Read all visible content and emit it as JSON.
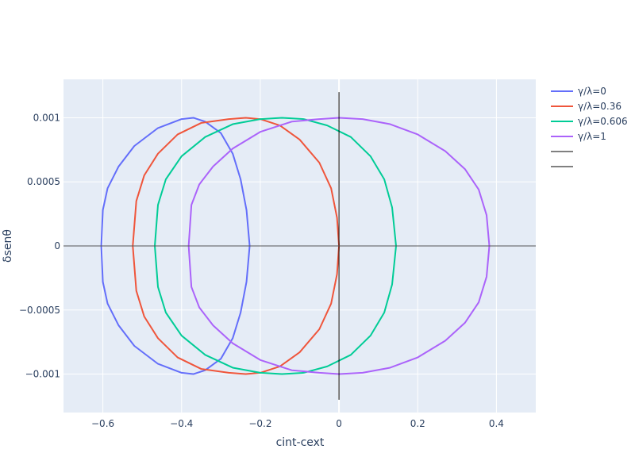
{
  "chart_data": {
    "type": "line",
    "xlabel": "cint-cext",
    "ylabel": "δsenθ",
    "xlim": [
      -0.7,
      0.5
    ],
    "ylim": [
      -0.0013,
      0.0013
    ],
    "xticks": [
      -0.6,
      -0.4,
      -0.2,
      0,
      0.2,
      0.4
    ],
    "xtick_labels": [
      "−0.6",
      "−0.4",
      "−0.2",
      "0",
      "0.2",
      "0.4"
    ],
    "yticks": [
      -0.001,
      -0.0005,
      0,
      0.0005,
      0.001
    ],
    "ytick_labels": [
      "−0.001",
      "−0.0005",
      "0",
      "0.0005",
      "0.001"
    ],
    "grid": true,
    "legend_position": "right",
    "colors": {
      "plot_bg": "#e5ecf6",
      "grid": "#ffffff",
      "zeroline": "#444444",
      "text": "#2a3f5f"
    },
    "series": [
      {
        "name": "γ/λ=0",
        "color": "#636efa",
        "points": [
          [
            -0.604,
            0
          ],
          [
            -0.6,
            0.00028
          ],
          [
            -0.588,
            0.00045
          ],
          [
            -0.56,
            0.00062
          ],
          [
            -0.52,
            0.00078
          ],
          [
            -0.46,
            0.00092
          ],
          [
            -0.4,
            0.00099
          ],
          [
            -0.37,
            0.001
          ],
          [
            -0.34,
            0.00097
          ],
          [
            -0.3,
            0.00088
          ],
          [
            -0.27,
            0.00072
          ],
          [
            -0.25,
            0.00052
          ],
          [
            -0.235,
            0.00028
          ],
          [
            -0.227,
            0
          ],
          [
            -0.235,
            -0.00028
          ],
          [
            -0.25,
            -0.00052
          ],
          [
            -0.27,
            -0.00072
          ],
          [
            -0.3,
            -0.00088
          ],
          [
            -0.34,
            -0.00097
          ],
          [
            -0.37,
            -0.001
          ],
          [
            -0.4,
            -0.00099
          ],
          [
            -0.46,
            -0.00092
          ],
          [
            -0.52,
            -0.00078
          ],
          [
            -0.56,
            -0.00062
          ],
          [
            -0.588,
            -0.00045
          ],
          [
            -0.6,
            -0.00028
          ],
          [
            -0.604,
            0
          ]
        ]
      },
      {
        "name": "γ/λ=0.36",
        "color": "#ef553b",
        "points": [
          [
            -0.524,
            0
          ],
          [
            -0.515,
            0.00035
          ],
          [
            -0.495,
            0.00055
          ],
          [
            -0.46,
            0.00072
          ],
          [
            -0.41,
            0.00087
          ],
          [
            -0.35,
            0.00096
          ],
          [
            -0.28,
            0.00099
          ],
          [
            -0.237,
            0.001
          ],
          [
            -0.2,
            0.00099
          ],
          [
            -0.15,
            0.00094
          ],
          [
            -0.1,
            0.00083
          ],
          [
            -0.05,
            0.00065
          ],
          [
            -0.02,
            0.00045
          ],
          [
            -0.005,
            0.00022
          ],
          [
            0,
            0
          ],
          [
            -0.005,
            -0.00022
          ],
          [
            -0.02,
            -0.00045
          ],
          [
            -0.05,
            -0.00065
          ],
          [
            -0.1,
            -0.00083
          ],
          [
            -0.15,
            -0.00094
          ],
          [
            -0.2,
            -0.00099
          ],
          [
            -0.237,
            -0.001
          ],
          [
            -0.28,
            -0.00099
          ],
          [
            -0.35,
            -0.00096
          ],
          [
            -0.41,
            -0.00087
          ],
          [
            -0.46,
            -0.00072
          ],
          [
            -0.495,
            -0.00055
          ],
          [
            -0.515,
            -0.00035
          ],
          [
            -0.524,
            0
          ]
        ]
      },
      {
        "name": "γ/λ=0.606",
        "color": "#00cc96",
        "points": [
          [
            -0.468,
            0
          ],
          [
            -0.46,
            0.00032
          ],
          [
            -0.44,
            0.00052
          ],
          [
            -0.4,
            0.0007
          ],
          [
            -0.34,
            0.00085
          ],
          [
            -0.27,
            0.00095
          ],
          [
            -0.2,
            0.00099
          ],
          [
            -0.145,
            0.001
          ],
          [
            -0.09,
            0.00099
          ],
          [
            -0.03,
            0.00094
          ],
          [
            0.03,
            0.00085
          ],
          [
            0.08,
            0.0007
          ],
          [
            0.115,
            0.00052
          ],
          [
            0.135,
            0.0003
          ],
          [
            0.145,
            0
          ],
          [
            0.135,
            -0.0003
          ],
          [
            0.115,
            -0.00052
          ],
          [
            0.08,
            -0.0007
          ],
          [
            0.03,
            -0.00085
          ],
          [
            -0.03,
            -0.00094
          ],
          [
            -0.09,
            -0.00099
          ],
          [
            -0.145,
            -0.001
          ],
          [
            -0.2,
            -0.00099
          ],
          [
            -0.27,
            -0.00095
          ],
          [
            -0.34,
            -0.00085
          ],
          [
            -0.4,
            -0.0007
          ],
          [
            -0.44,
            -0.00052
          ],
          [
            -0.46,
            -0.00032
          ],
          [
            -0.468,
            0
          ]
        ]
      },
      {
        "name": "γ/λ=1",
        "color": "#ab63fa",
        "points": [
          [
            -0.382,
            0
          ],
          [
            -0.375,
            0.00032
          ],
          [
            -0.355,
            0.00048
          ],
          [
            -0.32,
            0.00062
          ],
          [
            -0.27,
            0.00076
          ],
          [
            -0.2,
            0.00089
          ],
          [
            -0.12,
            0.00097
          ],
          [
            -0.05,
            0.00099
          ],
          [
            0,
            0.001
          ],
          [
            0.06,
            0.00099
          ],
          [
            0.13,
            0.00095
          ],
          [
            0.2,
            0.00087
          ],
          [
            0.27,
            0.00074
          ],
          [
            0.32,
            0.0006
          ],
          [
            0.355,
            0.00044
          ],
          [
            0.375,
            0.00024
          ],
          [
            0.382,
            0
          ],
          [
            0.375,
            -0.00024
          ],
          [
            0.355,
            -0.00044
          ],
          [
            0.32,
            -0.0006
          ],
          [
            0.27,
            -0.00074
          ],
          [
            0.2,
            -0.00087
          ],
          [
            0.13,
            -0.00095
          ],
          [
            0.06,
            -0.00099
          ],
          [
            0,
            -0.001
          ],
          [
            -0.05,
            -0.00099
          ],
          [
            -0.12,
            -0.00097
          ],
          [
            -0.2,
            -0.00089
          ],
          [
            -0.27,
            -0.00076
          ],
          [
            -0.32,
            -0.00062
          ],
          [
            -0.355,
            -0.00048
          ],
          [
            -0.375,
            -0.00032
          ],
          [
            -0.382,
            0
          ]
        ]
      },
      {
        "name": "",
        "color": "#000000",
        "width": 1,
        "points": [
          [
            0,
            -0.0012
          ],
          [
            0,
            0.0012
          ]
        ]
      },
      {
        "name": "",
        "color": "#000000",
        "width": 1,
        "points": [
          [
            -0.7,
            0
          ],
          [
            0.5,
            0
          ]
        ]
      }
    ]
  }
}
